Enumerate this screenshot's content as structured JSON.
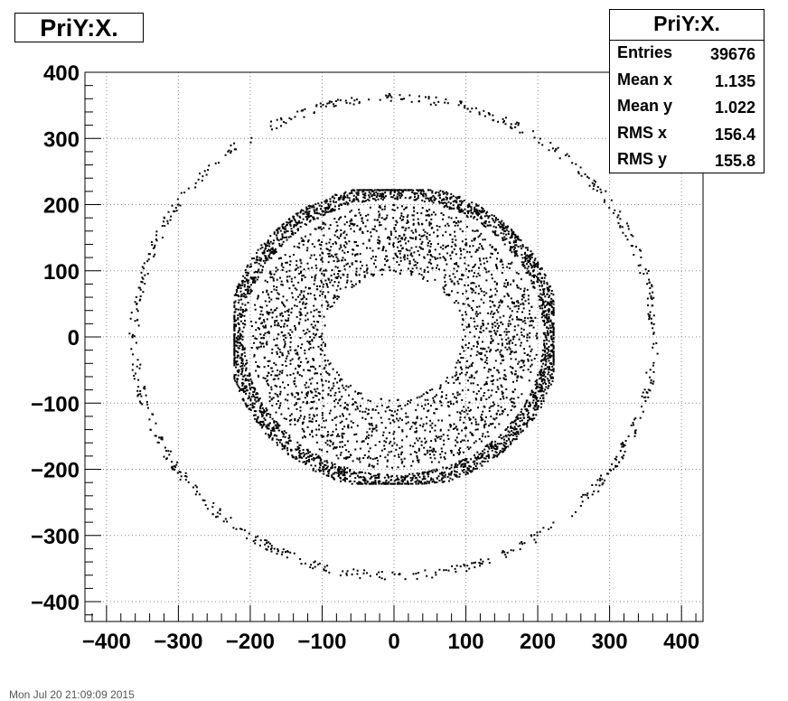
{
  "chart_data": {
    "type": "scatter",
    "title": "PriY:X.",
    "xlim": [
      -430,
      430
    ],
    "ylim": [
      -430,
      400
    ],
    "x_ticks": [
      -400,
      -300,
      -200,
      -100,
      0,
      100,
      200,
      300,
      400
    ],
    "y_ticks": [
      -400,
      -300,
      -200,
      -100,
      0,
      100,
      200,
      300,
      400
    ],
    "x_tick_labels": [
      "−400",
      "−300",
      "−200",
      "−100",
      "0",
      "100",
      "200",
      "300",
      "400"
    ],
    "y_tick_labels": [
      "−400",
      "−300",
      "−200",
      "−100",
      "0",
      "100",
      "200",
      "300",
      "400"
    ],
    "grid": true,
    "point_color": "#000000",
    "components": [
      {
        "shape": "ring",
        "radius_min": 355,
        "radius_max": 368,
        "points": 650
      },
      {
        "shape": "octagon-band",
        "radius_min": 200,
        "radius_max": 222,
        "points": 2600
      },
      {
        "shape": "disc-annulus",
        "radius_min": 95,
        "radius_max": 200,
        "points": 2400
      }
    ]
  },
  "stats": {
    "title": "PriY:X.",
    "rows": [
      {
        "label": "Entries",
        "value": "39676"
      },
      {
        "label": "Mean x",
        "value": "1.135"
      },
      {
        "label": "Mean y",
        "value": "1.022"
      },
      {
        "label": "RMS x",
        "value": "156.4"
      },
      {
        "label": "RMS y",
        "value": "155.8"
      }
    ]
  },
  "footer": "Mon Jul 20 21:09:09 2015"
}
